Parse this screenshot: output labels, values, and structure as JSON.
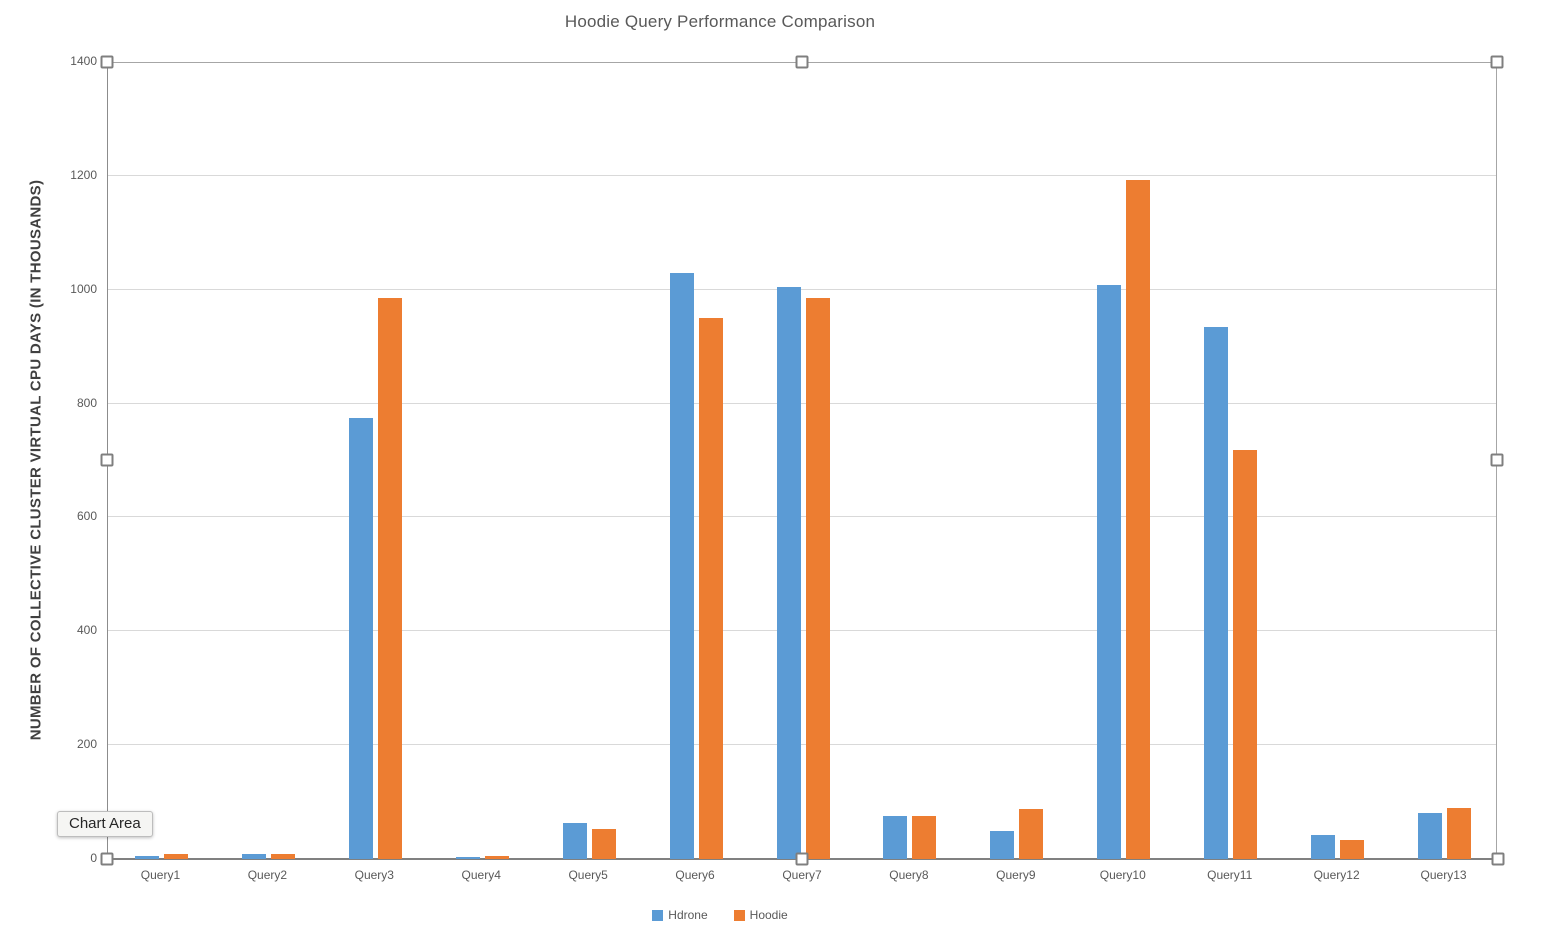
{
  "tooltip": {
    "label": "Chart Area"
  },
  "colors": {
    "series_blue": "#5B9BD5",
    "series_orange": "#ED7D31",
    "gridline": "#d9d9d9",
    "axis_line": "#808080",
    "text": "#595959"
  },
  "selection": {
    "handles": [
      "top-left",
      "top-center",
      "top-right",
      "mid-left",
      "mid-right",
      "bottom-left",
      "bottom-center",
      "bottom-right"
    ]
  },
  "chart_data": {
    "type": "bar",
    "title": "Hoodie Query Performance Comparison",
    "xlabel": "",
    "ylabel": "NUMBER OF COLLECTIVE CLUSTER VIRTUAL CPU DAYS (IN THOUSANDS)",
    "categories": [
      "Query1",
      "Query2",
      "Query3",
      "Query4",
      "Query5",
      "Query6",
      "Query7",
      "Query8",
      "Query9",
      "Query10",
      "Query11",
      "Query12",
      "Query13"
    ],
    "series": [
      {
        "name": "Hdrone",
        "color": "#5B9BD5",
        "values": [
          5,
          8,
          775,
          4,
          63,
          1030,
          1005,
          75,
          50,
          1008,
          935,
          43,
          81
        ]
      },
      {
        "name": "Hoodie",
        "color": "#ED7D31",
        "values": [
          9,
          8,
          985,
          5,
          52,
          950,
          985,
          76,
          88,
          1193,
          718,
          34,
          90
        ]
      }
    ],
    "ylim": [
      0,
      1400
    ],
    "yticks": [
      0,
      200,
      400,
      600,
      800,
      1000,
      1200,
      1400
    ],
    "grid": true,
    "legend_position": "bottom"
  }
}
